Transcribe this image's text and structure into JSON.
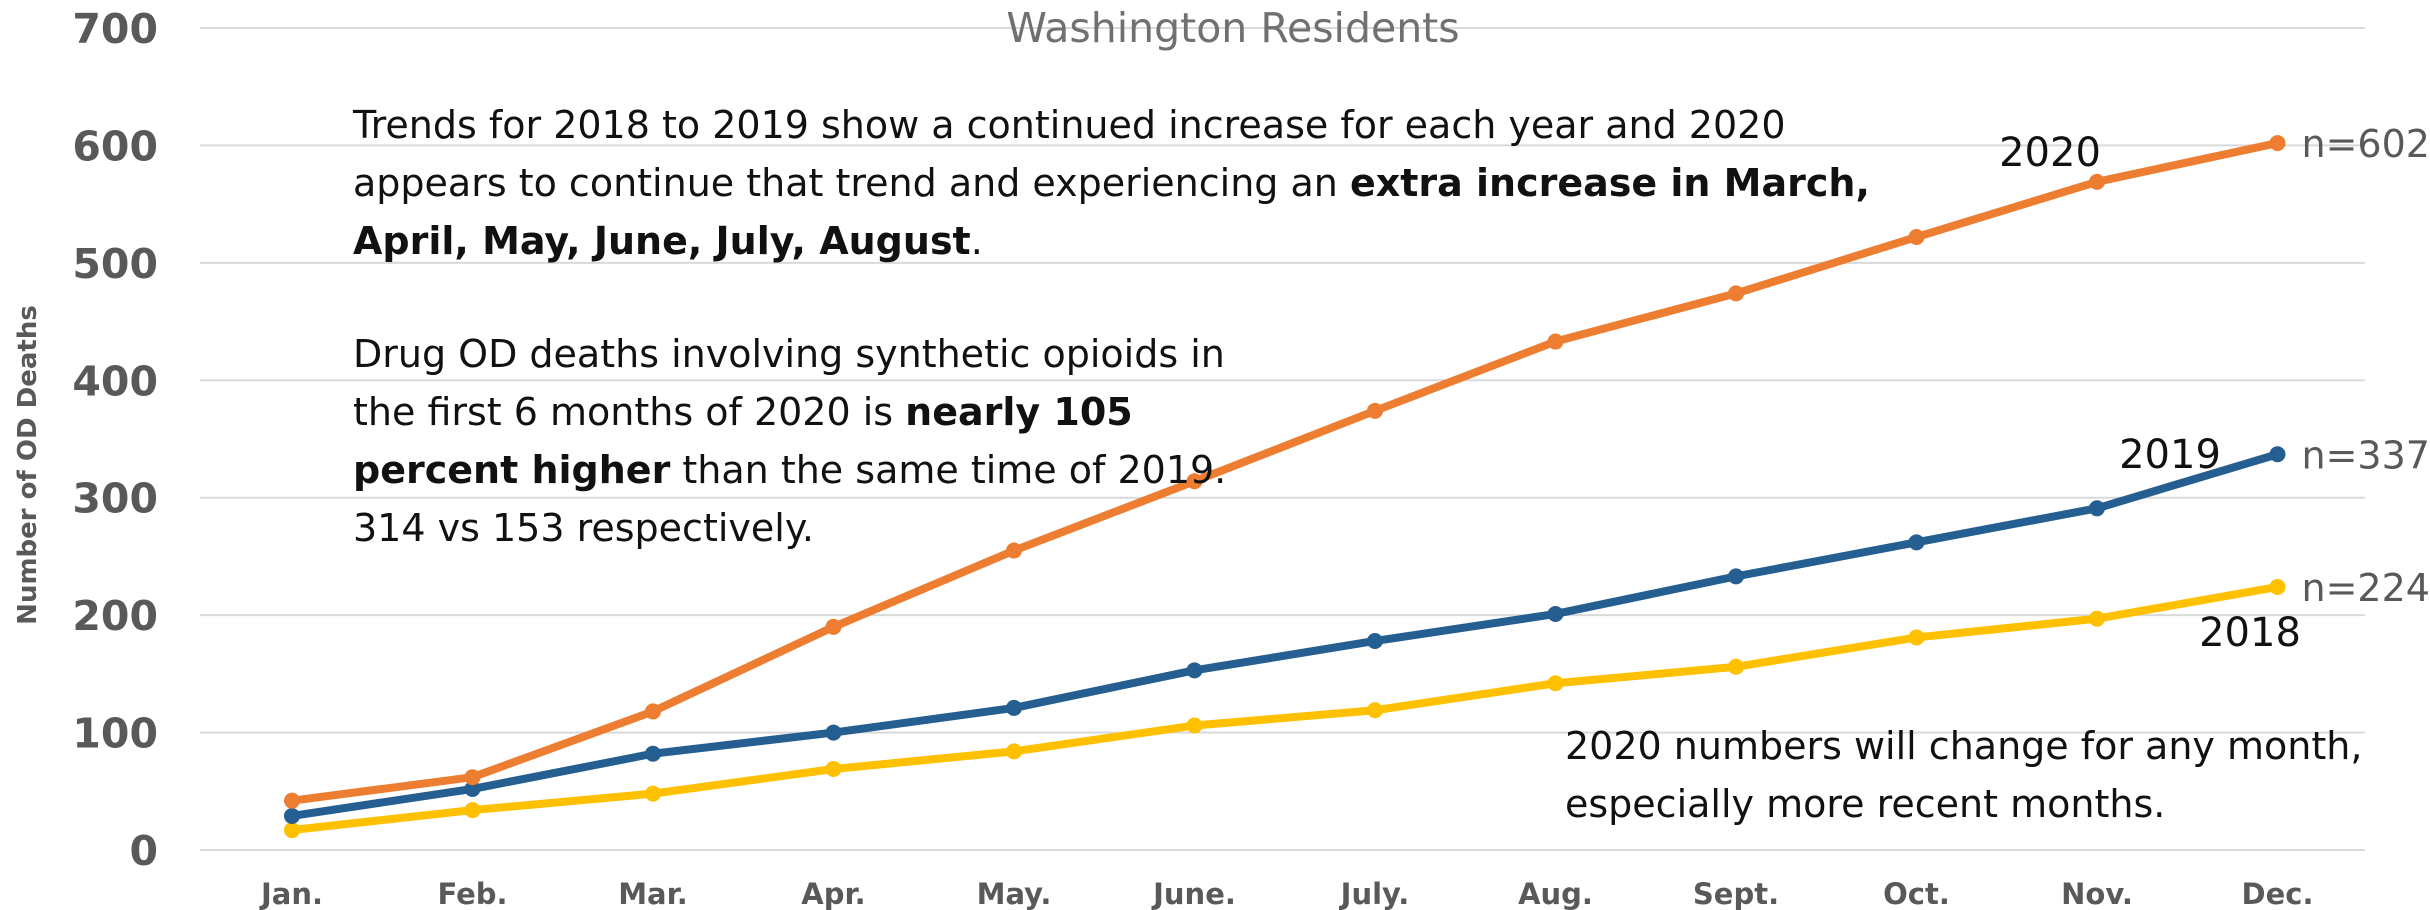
{
  "chart_data": {
    "type": "line",
    "title": "Washington Residents",
    "ylabel": "Number of OD Deaths",
    "xlabel": "",
    "categories": [
      "Jan.",
      "Feb.",
      "Mar.",
      "Apr.",
      "May.",
      "June.",
      "July.",
      "Aug.",
      "Sept.",
      "Oct.",
      "Nov.",
      "Dec."
    ],
    "ylim": [
      0,
      700
    ],
    "yticks": [
      0,
      100,
      200,
      300,
      400,
      500,
      600,
      700
    ],
    "grid": true,
    "series": [
      {
        "name": "2018",
        "color": "#ffc000",
        "values": [
          17,
          34,
          48,
          69,
          84,
          106,
          119,
          142,
          156,
          181,
          197,
          224
        ],
        "end_label": "n=224"
      },
      {
        "name": "2019",
        "color": "#255e91",
        "values": [
          29,
          52,
          82,
          100,
          121,
          153,
          178,
          201,
          233,
          262,
          291,
          337
        ],
        "end_label": "n=337"
      },
      {
        "name": "2020",
        "color": "#ed7d31",
        "values": [
          42,
          62,
          118,
          190,
          255,
          314,
          374,
          433,
          474,
          522,
          569,
          602
        ],
        "end_label": "n=602"
      }
    ]
  },
  "annotations": {
    "note1_a": "Trends for 2018 to 2019 show a continued increase for each year and 2020 appears to continue that trend and experiencing an ",
    "note1_bold": "extra increase in March, April, May, June, July, August",
    "note1_c": ".",
    "note2_a": "Drug OD deaths involving synthetic opioids in the first 6 months of 2020 is ",
    "note2_bold": "nearly 105 percent higher",
    "note2_c": " than the same time of 2019.",
    "note2_line2": "314 vs 153 respectively.",
    "note3": "2020 numbers will change for any month, especially more recent months."
  }
}
